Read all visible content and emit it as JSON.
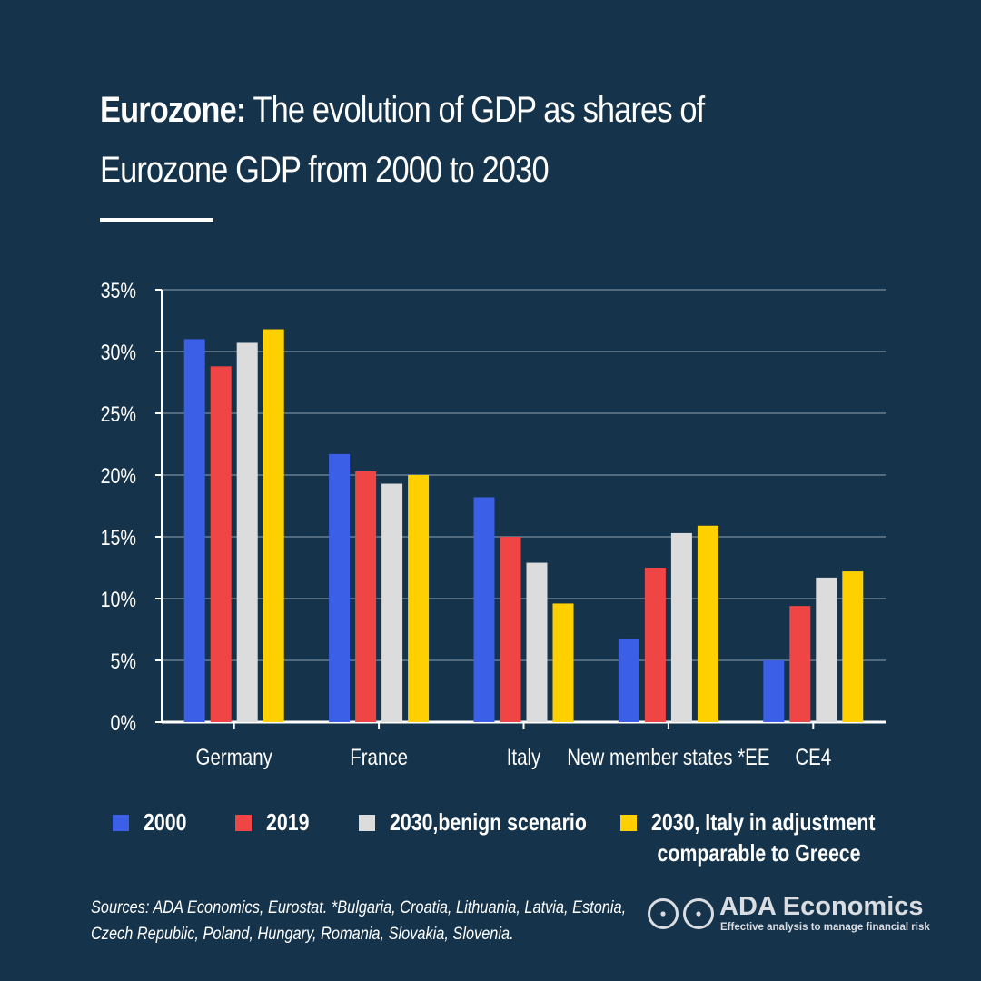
{
  "header": {
    "title_bold": "Eurozone:",
    "title_rest": " The evolution of GDP as shares of Eurozone GDP from 2000 to 2030"
  },
  "chart_data": {
    "type": "bar",
    "title": "Eurozone: The evolution of GDP as shares of Eurozone GDP from 2000 to 2030",
    "xlabel": "",
    "ylabel": "",
    "ylim": [
      0,
      35
    ],
    "yticks": [
      "0%",
      "5%",
      "10%",
      "15%",
      "20%",
      "25%",
      "30%",
      "35%"
    ],
    "ytick_values": [
      0,
      5,
      10,
      15,
      20,
      25,
      30,
      35
    ],
    "grid": true,
    "categories": [
      "Germany",
      "France",
      "Italy",
      "New member states *EE",
      "CE4"
    ],
    "series": [
      {
        "name": "2000",
        "color": "#3b5fe6",
        "values": [
          31.0,
          21.7,
          18.2,
          6.7,
          5.0
        ]
      },
      {
        "name": "2019",
        "color": "#f04545",
        "values": [
          28.8,
          20.3,
          15.0,
          12.5,
          9.4
        ]
      },
      {
        "name": "2030,benign scenario",
        "color": "#dcdcdc",
        "values": [
          30.7,
          19.3,
          12.9,
          15.3,
          11.7
        ]
      },
      {
        "name": "2030, Italy in adjustment comparable to Greece",
        "color": "#ffd000",
        "values": [
          31.8,
          20.0,
          9.6,
          15.9,
          12.2
        ]
      }
    ],
    "legend_position": "bottom"
  },
  "legend": [
    {
      "label": "2000",
      "color": "#3b5fe6"
    },
    {
      "label": "2019",
      "color": "#f04545"
    },
    {
      "label": "2030,benign scenario",
      "color": "#dcdcdc"
    },
    {
      "label_line1": "2030, Italy in adjustment",
      "label_line2": "comparable to Greece",
      "color": "#ffd000"
    }
  ],
  "footer": {
    "sources_line1": "Sources: ADA Economics, Eurostat. *Bulgaria, Croatia, Lithuania, Latvia, Estonia,",
    "sources_line2": "Czech Republic, Poland, Hungary, Romania, Slovakia, Slovenia.",
    "brand_name": "ADA Economics",
    "brand_tagline": "Effective analysis to manage financial risk"
  }
}
